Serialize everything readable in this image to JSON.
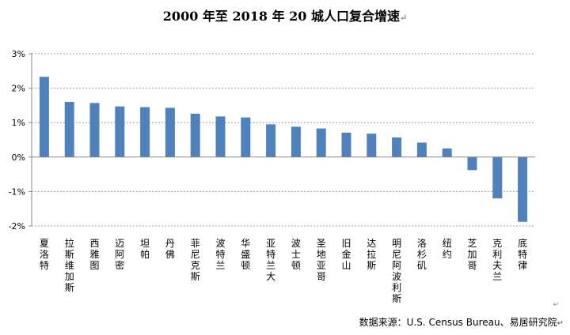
{
  "title": "2000 年至 2018 年 20 城人口复合增速",
  "para_mark": "↵",
  "corner_mark": "↵",
  "source": "数据来源：U.S. Census Bureau、易居研究院",
  "colors": {
    "bar": "#4f81bd",
    "grid": "#a0a0a0",
    "axis": "#888888"
  },
  "chart_data": {
    "type": "bar",
    "title": "2000 年至 2018 年 20 城人口复合增速",
    "xlabel": "",
    "ylabel": "",
    "categories": [
      "夏洛特",
      "拉斯维加斯",
      "西雅图",
      "迈阿密",
      "坦帕",
      "丹佛",
      "菲尼克斯",
      "波特兰",
      "华盛顿",
      "亚特兰大",
      "波士顿",
      "圣地亚哥",
      "旧金山",
      "达拉斯",
      "明尼阿波利斯",
      "洛杉矶",
      "纽约",
      "芝加哥",
      "克利夫兰",
      "底特律"
    ],
    "values": [
      2.33,
      1.6,
      1.57,
      1.47,
      1.45,
      1.43,
      1.26,
      1.18,
      1.15,
      0.95,
      0.88,
      0.83,
      0.71,
      0.68,
      0.57,
      0.42,
      0.25,
      -0.38,
      -1.2,
      -1.88
    ],
    "ylim": [
      -2,
      3
    ],
    "yticks": [
      "3%",
      "2%",
      "1%",
      "0%",
      "-1%",
      "-2%"
    ],
    "ytick_values": [
      3,
      2,
      1,
      0,
      -1,
      -2
    ],
    "grid": true,
    "legend": "none"
  }
}
